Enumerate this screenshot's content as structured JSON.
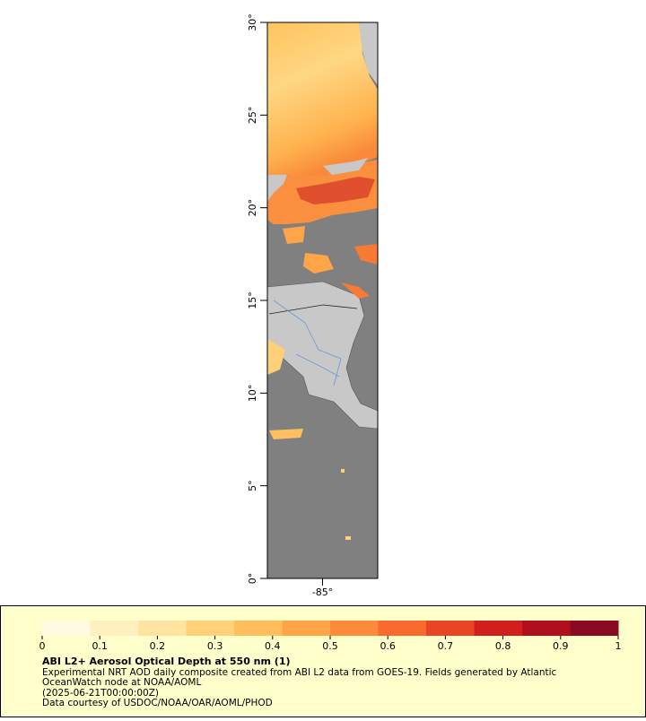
{
  "map": {
    "xlim": [
      -88,
      -82
    ],
    "ylim": [
      0,
      30
    ],
    "xticks": [
      {
        "value": -85,
        "label": "-85°"
      }
    ],
    "yticks": [
      {
        "value": 0,
        "label": "0°"
      },
      {
        "value": 5,
        "label": "5°"
      },
      {
        "value": 10,
        "label": "10°"
      },
      {
        "value": 15,
        "label": "15°"
      },
      {
        "value": 20,
        "label": "20°"
      },
      {
        "value": 25,
        "label": "25°"
      },
      {
        "value": 30,
        "label": "30°"
      }
    ]
  },
  "colorbar": {
    "range": [
      0,
      1
    ],
    "ticks": [
      0,
      0.1,
      0.2,
      0.3,
      0.4,
      0.5,
      0.6,
      0.7,
      0.8,
      0.9,
      1
    ],
    "colors": [
      "#fffbe0",
      "#fff0c0",
      "#ffe3a0",
      "#ffd27a",
      "#ffbd5c",
      "#ffa547",
      "#ff8a3a",
      "#f96a2e",
      "#e84525",
      "#d0201e",
      "#b0101e",
      "#8a0a22"
    ]
  },
  "legend": {
    "title": "ABI L2+ Aerosol Optical Depth at 550 nm (1)",
    "lines": [
      "Experimental NRT AOD daily composite created from ABI L2 data from GOES-19. Fields generated by Atlantic",
      "OceanWatch node at NOAA/AOML",
      "(2025-06-21T00:00:00Z)",
      "Data courtesy of USDOC/NOAA/OAR/AOML/PHOD"
    ]
  }
}
